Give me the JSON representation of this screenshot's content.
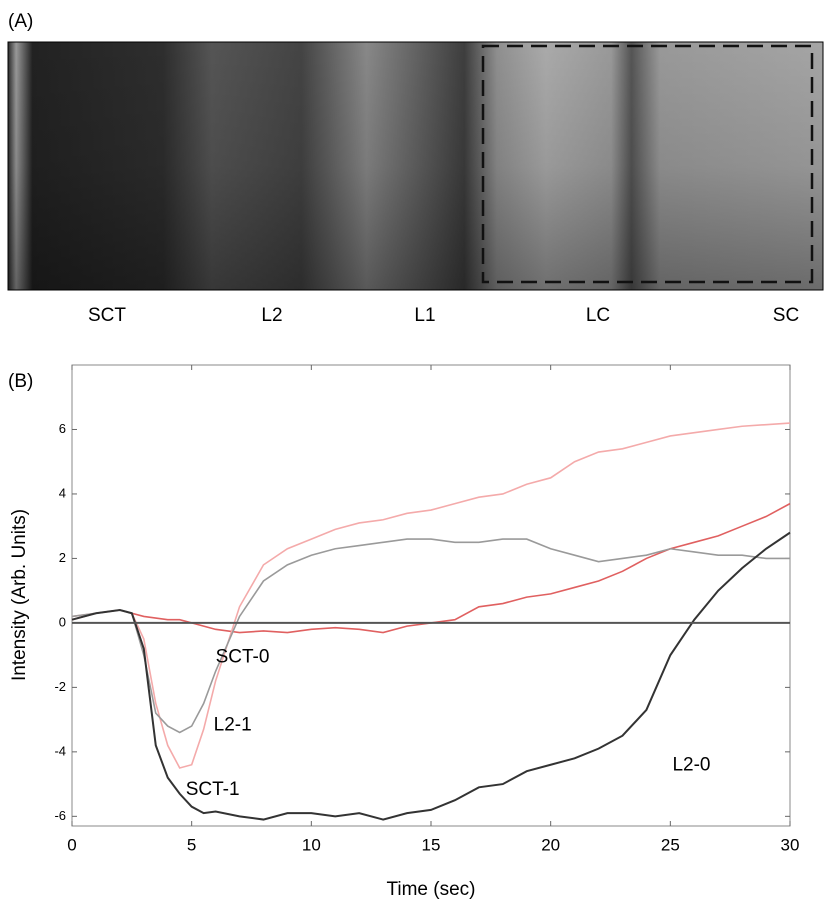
{
  "panel_a": {
    "label": "(A)",
    "regions": [
      "SCT",
      "L2",
      "L1",
      "LC",
      "SC"
    ]
  },
  "chart_data": {
    "type": "line",
    "panel_label": "(B)",
    "x_label": "Time (sec)",
    "y_label": "Intensity (Arb. Units)",
    "x": [
      0,
      1,
      2,
      2.5,
      3,
      3.5,
      4,
      4.5,
      5,
      5.5,
      6,
      7,
      8,
      9,
      10,
      11,
      12,
      13,
      14,
      15,
      16,
      17,
      18,
      19,
      20,
      21,
      22,
      23,
      24,
      25,
      26,
      27,
      28,
      29,
      30
    ],
    "series": [
      {
        "name": "SCT-0",
        "color": "#e06060",
        "values": [
          0.1,
          0.3,
          0.4,
          0.3,
          0.2,
          0.15,
          0.1,
          0.1,
          0,
          -0.1,
          -0.2,
          -0.3,
          -0.25,
          -0.3,
          -0.2,
          -0.15,
          -0.2,
          -0.3,
          -0.1,
          0,
          0.1,
          0.5,
          0.6,
          0.8,
          0.9,
          1.1,
          1.3,
          1.6,
          2,
          2.3,
          2.5,
          2.7,
          3,
          3.3,
          3.7
        ]
      },
      {
        "name": "SCT-1",
        "color": "#f4aaaa",
        "values": [
          0.2,
          0.3,
          0.4,
          0.3,
          -0.5,
          -2.5,
          -3.8,
          -4.5,
          -4.4,
          -3.3,
          -1.8,
          0.5,
          1.8,
          2.3,
          2.6,
          2.9,
          3.1,
          3.2,
          3.4,
          3.5,
          3.7,
          3.9,
          4,
          4.3,
          4.5,
          5,
          5.3,
          5.4,
          5.6,
          5.8,
          5.9,
          6,
          6.1,
          6.15,
          6.2
        ]
      },
      {
        "name": "L2-1",
        "color": "#9a9a9a",
        "values": [
          0.2,
          0.3,
          0.4,
          0.3,
          -1,
          -2.8,
          -3.2,
          -3.4,
          -3.2,
          -2.5,
          -1.5,
          0.2,
          1.3,
          1.8,
          2.1,
          2.3,
          2.4,
          2.5,
          2.6,
          2.6,
          2.5,
          2.5,
          2.6,
          2.6,
          2.3,
          2.1,
          1.9,
          2,
          2.1,
          2.3,
          2.2,
          2.1,
          2.1,
          2,
          2
        ]
      },
      {
        "name": "L2-0",
        "color": "#333333",
        "values": [
          0.1,
          0.3,
          0.4,
          0.3,
          -0.8,
          -3.8,
          -4.8,
          -5.3,
          -5.7,
          -5.9,
          -5.85,
          -6,
          -6.1,
          -5.9,
          -5.9,
          -6,
          -5.9,
          -6.1,
          -5.9,
          -5.8,
          -5.5,
          -5.1,
          -5,
          -4.6,
          -4.4,
          -4.2,
          -3.9,
          -3.5,
          -2.7,
          -1,
          0.1,
          1,
          1.7,
          2.3,
          2.8
        ]
      }
    ],
    "hline": 0,
    "xlim": [
      0,
      30
    ],
    "xticks": [
      0,
      5,
      10,
      15,
      20,
      25,
      30
    ],
    "ylim": [
      -6.3,
      8
    ],
    "yticks": [
      -6,
      -4,
      -2,
      0,
      2,
      4,
      6
    ]
  }
}
